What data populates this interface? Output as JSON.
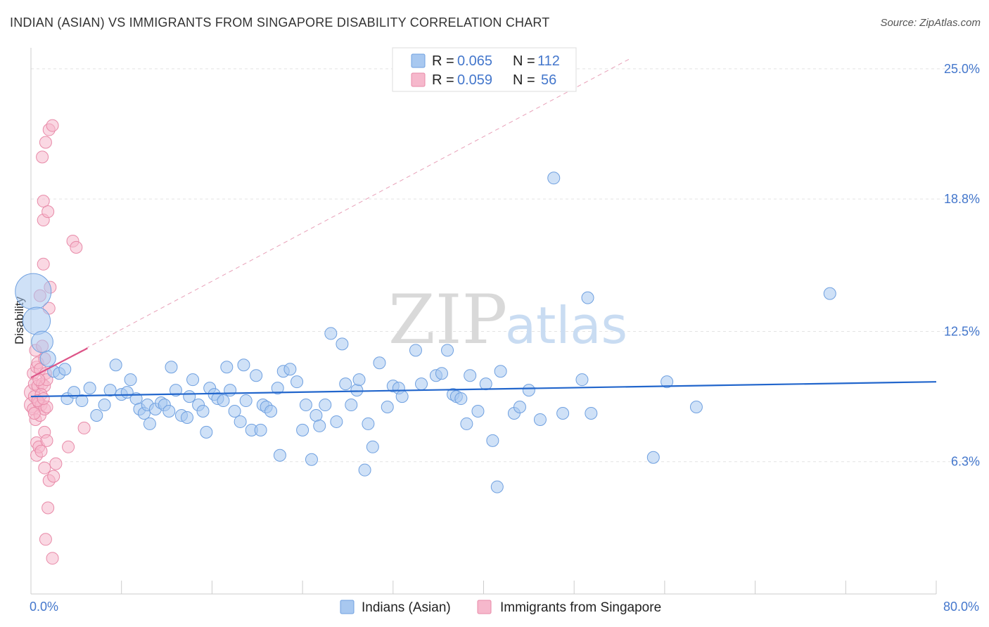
{
  "title": "INDIAN (ASIAN) VS IMMIGRANTS FROM SINGAPORE DISABILITY CORRELATION CHART",
  "source": "Source: ZipAtlas.com",
  "watermark": {
    "zip": "ZIP",
    "atlas": "atlas"
  },
  "chart_data": {
    "type": "scatter",
    "ylabel": "Disability",
    "xlim": [
      0,
      80
    ],
    "ylim": [
      0,
      26
    ],
    "x_ticks": [
      {
        "value": 0,
        "label": "0.0%"
      },
      {
        "value": 80,
        "label": "80.0%"
      }
    ],
    "y_ticks": [
      {
        "value": 6.3,
        "label": "6.3%"
      },
      {
        "value": 12.5,
        "label": "12.5%"
      },
      {
        "value": 18.8,
        "label": "18.8%"
      },
      {
        "value": 25.0,
        "label": "25.0%"
      }
    ],
    "grid": true,
    "legend": {
      "placement": "top-center",
      "rows": [
        {
          "r_label": "R =",
          "r_value": "0.065",
          "n_label": "N =",
          "n_value": "112",
          "color": "#a8c8f0"
        },
        {
          "r_label": "R =",
          "r_value": "0.059",
          "n_label": "N =",
          "n_value": "56",
          "color": "#f6b8cc"
        }
      ]
    },
    "series": [
      {
        "name": "Indians (Asian)",
        "color": "#6fa0e0",
        "fill": "#a8c8f0",
        "trend": {
          "x": [
            0,
            80
          ],
          "y": [
            9.4,
            10.1
          ],
          "color": "#2266cc"
        },
        "points": [
          [
            0.2,
            14.4,
            3
          ],
          [
            0.5,
            13.0,
            2.3
          ],
          [
            1,
            12.0,
            1.8
          ],
          [
            1.5,
            11.2,
            1.3
          ],
          [
            2,
            10.6,
            1
          ],
          [
            2.5,
            10.5,
            1
          ],
          [
            3,
            10.7,
            1
          ],
          [
            3.2,
            9.3,
            1
          ],
          [
            3.8,
            9.6,
            1
          ],
          [
            4.5,
            9.2,
            1
          ],
          [
            5.2,
            9.8,
            1
          ],
          [
            5.8,
            8.5,
            1
          ],
          [
            6.5,
            9.0,
            1
          ],
          [
            7,
            9.7,
            1
          ],
          [
            7.5,
            10.9,
            1
          ],
          [
            8,
            9.5,
            1
          ],
          [
            8.5,
            9.6,
            1
          ],
          [
            8.8,
            10.2,
            1
          ],
          [
            9.3,
            9.3,
            1
          ],
          [
            9.6,
            8.8,
            1
          ],
          [
            10,
            8.6,
            1
          ],
          [
            10.3,
            9.0,
            1
          ],
          [
            10.5,
            8.1,
            1
          ],
          [
            11,
            8.8,
            1
          ],
          [
            11.5,
            9.1,
            1
          ],
          [
            11.8,
            9.0,
            1
          ],
          [
            12.2,
            8.7,
            1
          ],
          [
            12.4,
            10.8,
            1
          ],
          [
            12.8,
            9.7,
            1
          ],
          [
            13.3,
            8.5,
            1
          ],
          [
            13.8,
            8.4,
            1
          ],
          [
            14,
            9.4,
            1
          ],
          [
            14.3,
            10.2,
            1
          ],
          [
            14.8,
            9.0,
            1
          ],
          [
            15.2,
            8.7,
            1
          ],
          [
            15.5,
            7.7,
            1
          ],
          [
            15.8,
            9.8,
            1
          ],
          [
            16.2,
            9.5,
            1
          ],
          [
            16.5,
            9.3,
            1
          ],
          [
            17,
            9.2,
            1
          ],
          [
            17.3,
            10.8,
            1
          ],
          [
            17.6,
            9.7,
            1
          ],
          [
            18,
            8.7,
            1
          ],
          [
            18.5,
            8.2,
            1
          ],
          [
            18.8,
            10.9,
            1
          ],
          [
            19,
            9.2,
            1
          ],
          [
            19.5,
            7.8,
            1
          ],
          [
            19.9,
            10.4,
            1
          ],
          [
            20.3,
            7.8,
            1
          ],
          [
            20.5,
            9.0,
            1
          ],
          [
            20.8,
            8.9,
            1
          ],
          [
            21.2,
            8.7,
            1
          ],
          [
            21.8,
            9.8,
            1
          ],
          [
            22,
            6.6,
            1
          ],
          [
            22.3,
            10.6,
            1
          ],
          [
            22.9,
            10.7,
            1
          ],
          [
            23.5,
            10.1,
            1
          ],
          [
            24,
            7.8,
            1
          ],
          [
            24.3,
            9.0,
            1
          ],
          [
            24.8,
            6.4,
            1
          ],
          [
            25.2,
            8.5,
            1
          ],
          [
            25.5,
            8.0,
            1
          ],
          [
            26,
            9.0,
            1
          ],
          [
            26.5,
            12.4,
            1
          ],
          [
            27,
            8.2,
            1
          ],
          [
            27.5,
            11.9,
            1
          ],
          [
            27.8,
            10.0,
            1
          ],
          [
            28.3,
            9.0,
            1
          ],
          [
            28.8,
            9.7,
            1
          ],
          [
            29,
            10.2,
            1
          ],
          [
            29.5,
            5.9,
            1
          ],
          [
            29.8,
            8.1,
            1
          ],
          [
            30.2,
            7.0,
            1
          ],
          [
            30.8,
            11.0,
            1
          ],
          [
            31.5,
            8.9,
            1
          ],
          [
            32,
            9.9,
            1
          ],
          [
            32.5,
            9.8,
            1
          ],
          [
            32.8,
            9.4,
            1
          ],
          [
            34,
            11.6,
            1
          ],
          [
            34.5,
            10.0,
            1
          ],
          [
            35.8,
            10.4,
            1
          ],
          [
            36.3,
            10.5,
            1
          ],
          [
            36.8,
            11.6,
            1
          ],
          [
            37.3,
            9.5,
            1
          ],
          [
            37.6,
            9.4,
            1
          ],
          [
            38,
            9.3,
            1
          ],
          [
            38.5,
            8.1,
            1
          ],
          [
            38.8,
            10.4,
            1
          ],
          [
            39.5,
            8.7,
            1
          ],
          [
            40.2,
            10.0,
            1
          ],
          [
            40.8,
            7.3,
            1
          ],
          [
            41.2,
            5.1,
            1
          ],
          [
            41.5,
            10.6,
            1
          ],
          [
            42.7,
            8.6,
            1
          ],
          [
            43.2,
            8.9,
            1
          ],
          [
            44,
            9.7,
            1
          ],
          [
            45,
            8.3,
            1
          ],
          [
            46.2,
            19.8,
            1
          ],
          [
            47,
            8.6,
            1
          ],
          [
            48.7,
            10.2,
            1
          ],
          [
            49.2,
            14.1,
            1
          ],
          [
            49.5,
            8.6,
            1
          ],
          [
            55,
            6.5,
            1
          ],
          [
            56.2,
            10.1,
            1
          ],
          [
            58.8,
            8.9,
            1
          ],
          [
            70.6,
            14.3,
            1
          ]
        ]
      },
      {
        "name": "Immigrants from Singapore",
        "color": "#e88aa8",
        "fill": "#f6b8cc",
        "trend": {
          "x": [
            0,
            5
          ],
          "y": [
            10.3,
            11.7
          ],
          "color": "#dd5588"
        },
        "trend_dashed": {
          "x": [
            0,
            53
          ],
          "y": [
            10.3,
            25.5
          ],
          "color": "#e8a0b8"
        },
        "points": [
          [
            0.1,
            9.6,
            1.3
          ],
          [
            0.1,
            9.0,
            1.3
          ],
          [
            0.2,
            10.5,
            1
          ],
          [
            0.2,
            8.8,
            1
          ],
          [
            0.3,
            9.4,
            1
          ],
          [
            0.3,
            10.0,
            1
          ],
          [
            0.4,
            11.6,
            1
          ],
          [
            0.4,
            8.3,
            1
          ],
          [
            0.5,
            10.8,
            1
          ],
          [
            0.5,
            7.2,
            1
          ],
          [
            0.5,
            6.6,
            1
          ],
          [
            0.6,
            9.9,
            1
          ],
          [
            0.6,
            11.0,
            1
          ],
          [
            0.7,
            9.1,
            1
          ],
          [
            0.7,
            7.0,
            1
          ],
          [
            0.8,
            10.7,
            1
          ],
          [
            0.8,
            8.5,
            1
          ],
          [
            0.8,
            14.2,
            1
          ],
          [
            0.9,
            9.0,
            1
          ],
          [
            0.9,
            6.8,
            1
          ],
          [
            1.0,
            11.8,
            1
          ],
          [
            1.0,
            10.0,
            1
          ],
          [
            1.0,
            20.8,
            1
          ],
          [
            1.1,
            18.7,
            1
          ],
          [
            1.1,
            15.7,
            1
          ],
          [
            1.1,
            17.8,
            1
          ],
          [
            1.2,
            9.9,
            1
          ],
          [
            1.2,
            7.7,
            1
          ],
          [
            1.2,
            6.0,
            1
          ],
          [
            1.2,
            8.8,
            1
          ],
          [
            1.3,
            21.5,
            1
          ],
          [
            1.3,
            10.5,
            1
          ],
          [
            1.4,
            8.9,
            1
          ],
          [
            1.4,
            7.3,
            1
          ],
          [
            1.5,
            18.2,
            1
          ],
          [
            1.5,
            4.1,
            1
          ],
          [
            1.6,
            22.1,
            1
          ],
          [
            1.6,
            13.6,
            1
          ],
          [
            1.6,
            5.4,
            1
          ],
          [
            1.7,
            14.6,
            1
          ],
          [
            1.9,
            22.3,
            1
          ],
          [
            2.0,
            5.6,
            1
          ],
          [
            2.2,
            6.2,
            1
          ],
          [
            1.3,
            2.6,
            1
          ],
          [
            1.9,
            1.7,
            1
          ],
          [
            1.4,
            10.2,
            1
          ],
          [
            0.9,
            9.5,
            1
          ],
          [
            0.6,
            9.2,
            1
          ],
          [
            1.2,
            11.2,
            1
          ],
          [
            0.3,
            8.6,
            1
          ],
          [
            3.7,
            16.8,
            1
          ],
          [
            4.0,
            16.5,
            1
          ],
          [
            3.3,
            7.0,
            1
          ],
          [
            4.7,
            7.9,
            1
          ],
          [
            0.7,
            10.2,
            1
          ],
          [
            1.1,
            9.3,
            1
          ]
        ]
      }
    ]
  }
}
